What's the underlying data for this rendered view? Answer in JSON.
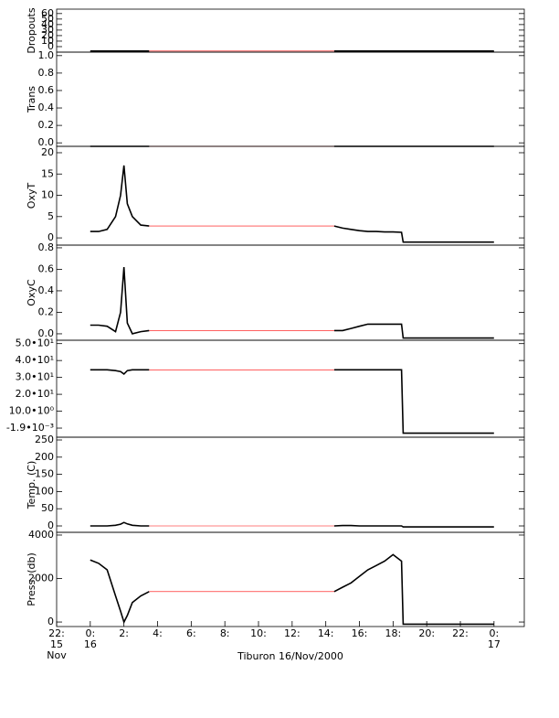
{
  "chart_data": [
    {
      "type": "line",
      "ylabel": "Dropouts",
      "x": [
        0,
        0.5,
        1,
        1.5,
        1.8,
        2,
        2.2,
        2.5,
        3,
        3.5,
        9,
        14.5,
        15,
        15.5,
        16,
        16.5,
        17,
        17.5,
        18,
        18.5,
        18.6,
        20,
        22,
        24
      ],
      "xlim": [
        -2,
        25.8
      ],
      "ylim": [
        -10,
        68
      ],
      "yticks": [
        0,
        10,
        20,
        30,
        40,
        50,
        60
      ],
      "series": [
        {
          "color": "#000000",
          "values": [
            -8,
            -8,
            -8,
            -8,
            -8,
            -8,
            -8,
            -8,
            -8,
            -8,
            null,
            -8,
            -8,
            -8,
            -8,
            -8,
            -8,
            -8,
            -8,
            -8,
            -8,
            -8,
            -8,
            -8
          ]
        },
        {
          "color": "#ff0000",
          "values": [
            null,
            null,
            null,
            null,
            null,
            null,
            null,
            null,
            null,
            -8,
            -8,
            -8,
            null,
            null,
            null,
            null,
            null,
            null,
            null,
            null,
            null,
            null,
            null,
            null
          ]
        }
      ]
    },
    {
      "type": "line",
      "ylabel": "Trans",
      "x": [
        0,
        0.5,
        1,
        1.5,
        1.8,
        2,
        2.2,
        2.5,
        3,
        3.5,
        9,
        14.5,
        15,
        15.5,
        16,
        16.5,
        17,
        17.5,
        18,
        18.5,
        18.6,
        20,
        22,
        24
      ],
      "xlim": [
        -2,
        25.8
      ],
      "ylim": [
        -0.04,
        1.04
      ],
      "yticks": [
        {
          "value": 0,
          "label": "0.0"
        },
        0.2,
        0.4,
        0.6,
        0.8,
        {
          "value": 1,
          "label": "1.0"
        }
      ],
      "series": [
        {
          "color": "#000000",
          "values": [
            -0.04,
            -0.04,
            -0.04,
            -0.04,
            -0.04,
            -0.04,
            -0.04,
            -0.04,
            -0.04,
            -0.04,
            null,
            -0.04,
            -0.04,
            -0.04,
            -0.04,
            -0.04,
            -0.04,
            -0.04,
            -0.04,
            -0.04,
            -0.04,
            -0.04,
            -0.04,
            -0.04
          ]
        },
        {
          "color": "#ff0000",
          "values": [
            null,
            null,
            null,
            null,
            null,
            null,
            null,
            null,
            null,
            -0.04,
            -0.04,
            -0.04,
            null,
            null,
            null,
            null,
            null,
            null,
            null,
            null,
            null,
            null,
            null,
            null
          ]
        }
      ]
    },
    {
      "type": "line",
      "ylabel": "OxyT",
      "x": [
        0,
        0.5,
        1,
        1.5,
        1.8,
        2,
        2.2,
        2.5,
        3,
        3.5,
        9,
        14.5,
        15,
        15.5,
        16,
        16.5,
        17,
        17.5,
        18,
        18.5,
        18.6,
        20,
        22,
        24
      ],
      "xlim": [
        -2,
        25.8
      ],
      "ylim": [
        -1.7,
        21.5
      ],
      "yticks": [
        0,
        5,
        10,
        15,
        20
      ],
      "series": [
        {
          "color": "#000000",
          "values": [
            1.5,
            1.5,
            2,
            5,
            10,
            17,
            8,
            5,
            3,
            2.8,
            null,
            2.8,
            2.3,
            2,
            1.7,
            1.5,
            1.5,
            1.4,
            1.4,
            1.3,
            -1,
            -1,
            -1,
            -1
          ]
        },
        {
          "color": "#ff0000",
          "values": [
            null,
            null,
            null,
            null,
            null,
            null,
            null,
            null,
            null,
            2.8,
            2.8,
            2.8,
            null,
            null,
            null,
            null,
            null,
            null,
            null,
            null,
            null,
            null,
            null,
            null
          ]
        }
      ]
    },
    {
      "type": "line",
      "ylabel": "OxyC",
      "x": [
        0,
        0.5,
        1,
        1.5,
        1.8,
        2,
        2.2,
        2.5,
        3,
        3.5,
        9,
        14.5,
        15,
        15.5,
        16,
        16.5,
        17,
        17.5,
        18,
        18.5,
        18.6,
        20,
        22,
        24
      ],
      "xlim": [
        -2,
        25.8
      ],
      "ylim": [
        -0.06,
        0.825
      ],
      "yticks": [
        {
          "value": 0,
          "label": "0.0"
        },
        0.2,
        0.4,
        0.6,
        0.8
      ],
      "series": [
        {
          "color": "#000000",
          "values": [
            0.08,
            0.08,
            0.07,
            0.02,
            0.2,
            0.62,
            0.1,
            0,
            0.02,
            0.03,
            null,
            0.03,
            0.03,
            0.05,
            0.07,
            0.09,
            0.09,
            0.09,
            0.09,
            0.09,
            -0.04,
            -0.04,
            -0.04,
            -0.04
          ]
        },
        {
          "color": "#ff0000",
          "values": [
            null,
            null,
            null,
            null,
            null,
            null,
            null,
            null,
            null,
            0.03,
            0.03,
            0.03,
            null,
            null,
            null,
            null,
            null,
            null,
            null,
            null,
            null,
            null,
            null,
            null
          ]
        }
      ]
    },
    {
      "type": "line",
      "x": [
        0,
        0.5,
        1,
        1.5,
        1.8,
        2,
        2.2,
        2.5,
        3,
        3.5,
        9,
        14.5,
        15,
        15.5,
        16,
        16.5,
        17,
        17.5,
        18,
        18.5,
        18.6,
        20,
        22,
        24
      ],
      "xlim": [
        -2,
        25.8
      ],
      "ylim": [
        -5.4,
        52
      ],
      "yticks": [
        {
          "value": -0.0019,
          "label": "-1.9•10⁻³"
        },
        {
          "value": 10,
          "label": "10.0•10⁰"
        },
        {
          "value": 20,
          "label": "2.0•10¹"
        },
        {
          "value": 30,
          "label": "3.0•10¹"
        },
        {
          "value": 40,
          "label": "4.0•10¹"
        },
        {
          "value": 50,
          "label": "5.0•10¹"
        }
      ],
      "series": [
        {
          "color": "#000000",
          "values": [
            34.5,
            34.5,
            34.5,
            34,
            33.5,
            32,
            34,
            34.5,
            34.5,
            34.5,
            null,
            34.5,
            34.5,
            34.5,
            34.5,
            34.5,
            34.5,
            34.5,
            34.5,
            34.5,
            -3,
            -3,
            -3,
            -3
          ]
        },
        {
          "color": "#ff0000",
          "values": [
            null,
            null,
            null,
            null,
            null,
            null,
            null,
            null,
            null,
            34.5,
            34.5,
            34.5,
            null,
            null,
            null,
            null,
            null,
            null,
            null,
            null,
            null,
            null,
            null,
            null
          ]
        }
      ]
    },
    {
      "type": "line",
      "ylabel": "Temp. (C)",
      "x": [
        0,
        0.5,
        1,
        1.5,
        1.8,
        2,
        2.2,
        2.5,
        3,
        3.5,
        9,
        14.5,
        15,
        15.5,
        16,
        16.5,
        17,
        17.5,
        18,
        18.5,
        18.6,
        20,
        22,
        24
      ],
      "xlim": [
        -2,
        25.8
      ],
      "ylim": [
        -18.6,
        258
      ],
      "yticks": [
        0,
        50,
        100,
        150,
        200,
        250
      ],
      "series": [
        {
          "color": "#000000",
          "values": [
            0,
            0,
            0,
            2,
            5,
            10,
            6,
            2,
            0,
            0,
            null,
            0,
            1,
            1,
            0,
            0,
            0,
            0,
            0,
            0,
            -3,
            -3,
            -3,
            -3
          ]
        },
        {
          "color": "#ff0000",
          "values": [
            null,
            null,
            null,
            null,
            null,
            null,
            null,
            null,
            null,
            0,
            0,
            0,
            null,
            null,
            null,
            null,
            null,
            null,
            null,
            null,
            null,
            null,
            null,
            null
          ]
        }
      ]
    },
    {
      "type": "line",
      "ylabel": "Press. (db)",
      "xlabel": "Tiburon 16/Nov/2000",
      "x": [
        0,
        0.5,
        1,
        1.5,
        1.8,
        2,
        2.2,
        2.5,
        3,
        3.5,
        9,
        14.5,
        15,
        15.5,
        16,
        16.5,
        17,
        17.5,
        18,
        18.5,
        18.6,
        20,
        22,
        24
      ],
      "xlim": [
        -2,
        25.8
      ],
      "ylim": [
        -208,
        4125
      ],
      "yticks": [
        0,
        2000,
        4000
      ],
      "xticks": [
        {
          "value": -2,
          "label": "22:\n15\nNov"
        },
        {
          "value": 0,
          "label": "0:\n16"
        },
        {
          "value": 2,
          "label": "2:"
        },
        {
          "value": 4,
          "label": "4:"
        },
        {
          "value": 6,
          "label": "6:"
        },
        {
          "value": 8,
          "label": "8:"
        },
        {
          "value": 10,
          "label": "10:"
        },
        {
          "value": 12,
          "label": "12:"
        },
        {
          "value": 14,
          "label": "14:"
        },
        {
          "value": 16,
          "label": "16:"
        },
        {
          "value": 18,
          "label": "18:"
        },
        {
          "value": 20,
          "label": "20:"
        },
        {
          "value": 22,
          "label": "22:"
        },
        {
          "value": 24,
          "label": "0:\n17"
        }
      ],
      "series": [
        {
          "color": "#000000",
          "values": [
            2850,
            2700,
            2400,
            1200,
            500,
            0,
            300,
            900,
            1200,
            1400,
            null,
            1400,
            1600,
            1800,
            2100,
            2400,
            2600,
            2800,
            3100,
            2800,
            -100,
            -100,
            -100,
            -100
          ]
        },
        {
          "color": "#ff0000",
          "values": [
            null,
            null,
            null,
            null,
            null,
            null,
            null,
            null,
            null,
            1400,
            1400,
            1400,
            null,
            null,
            null,
            null,
            null,
            null,
            null,
            null,
            null,
            null,
            null,
            null
          ]
        }
      ]
    }
  ]
}
